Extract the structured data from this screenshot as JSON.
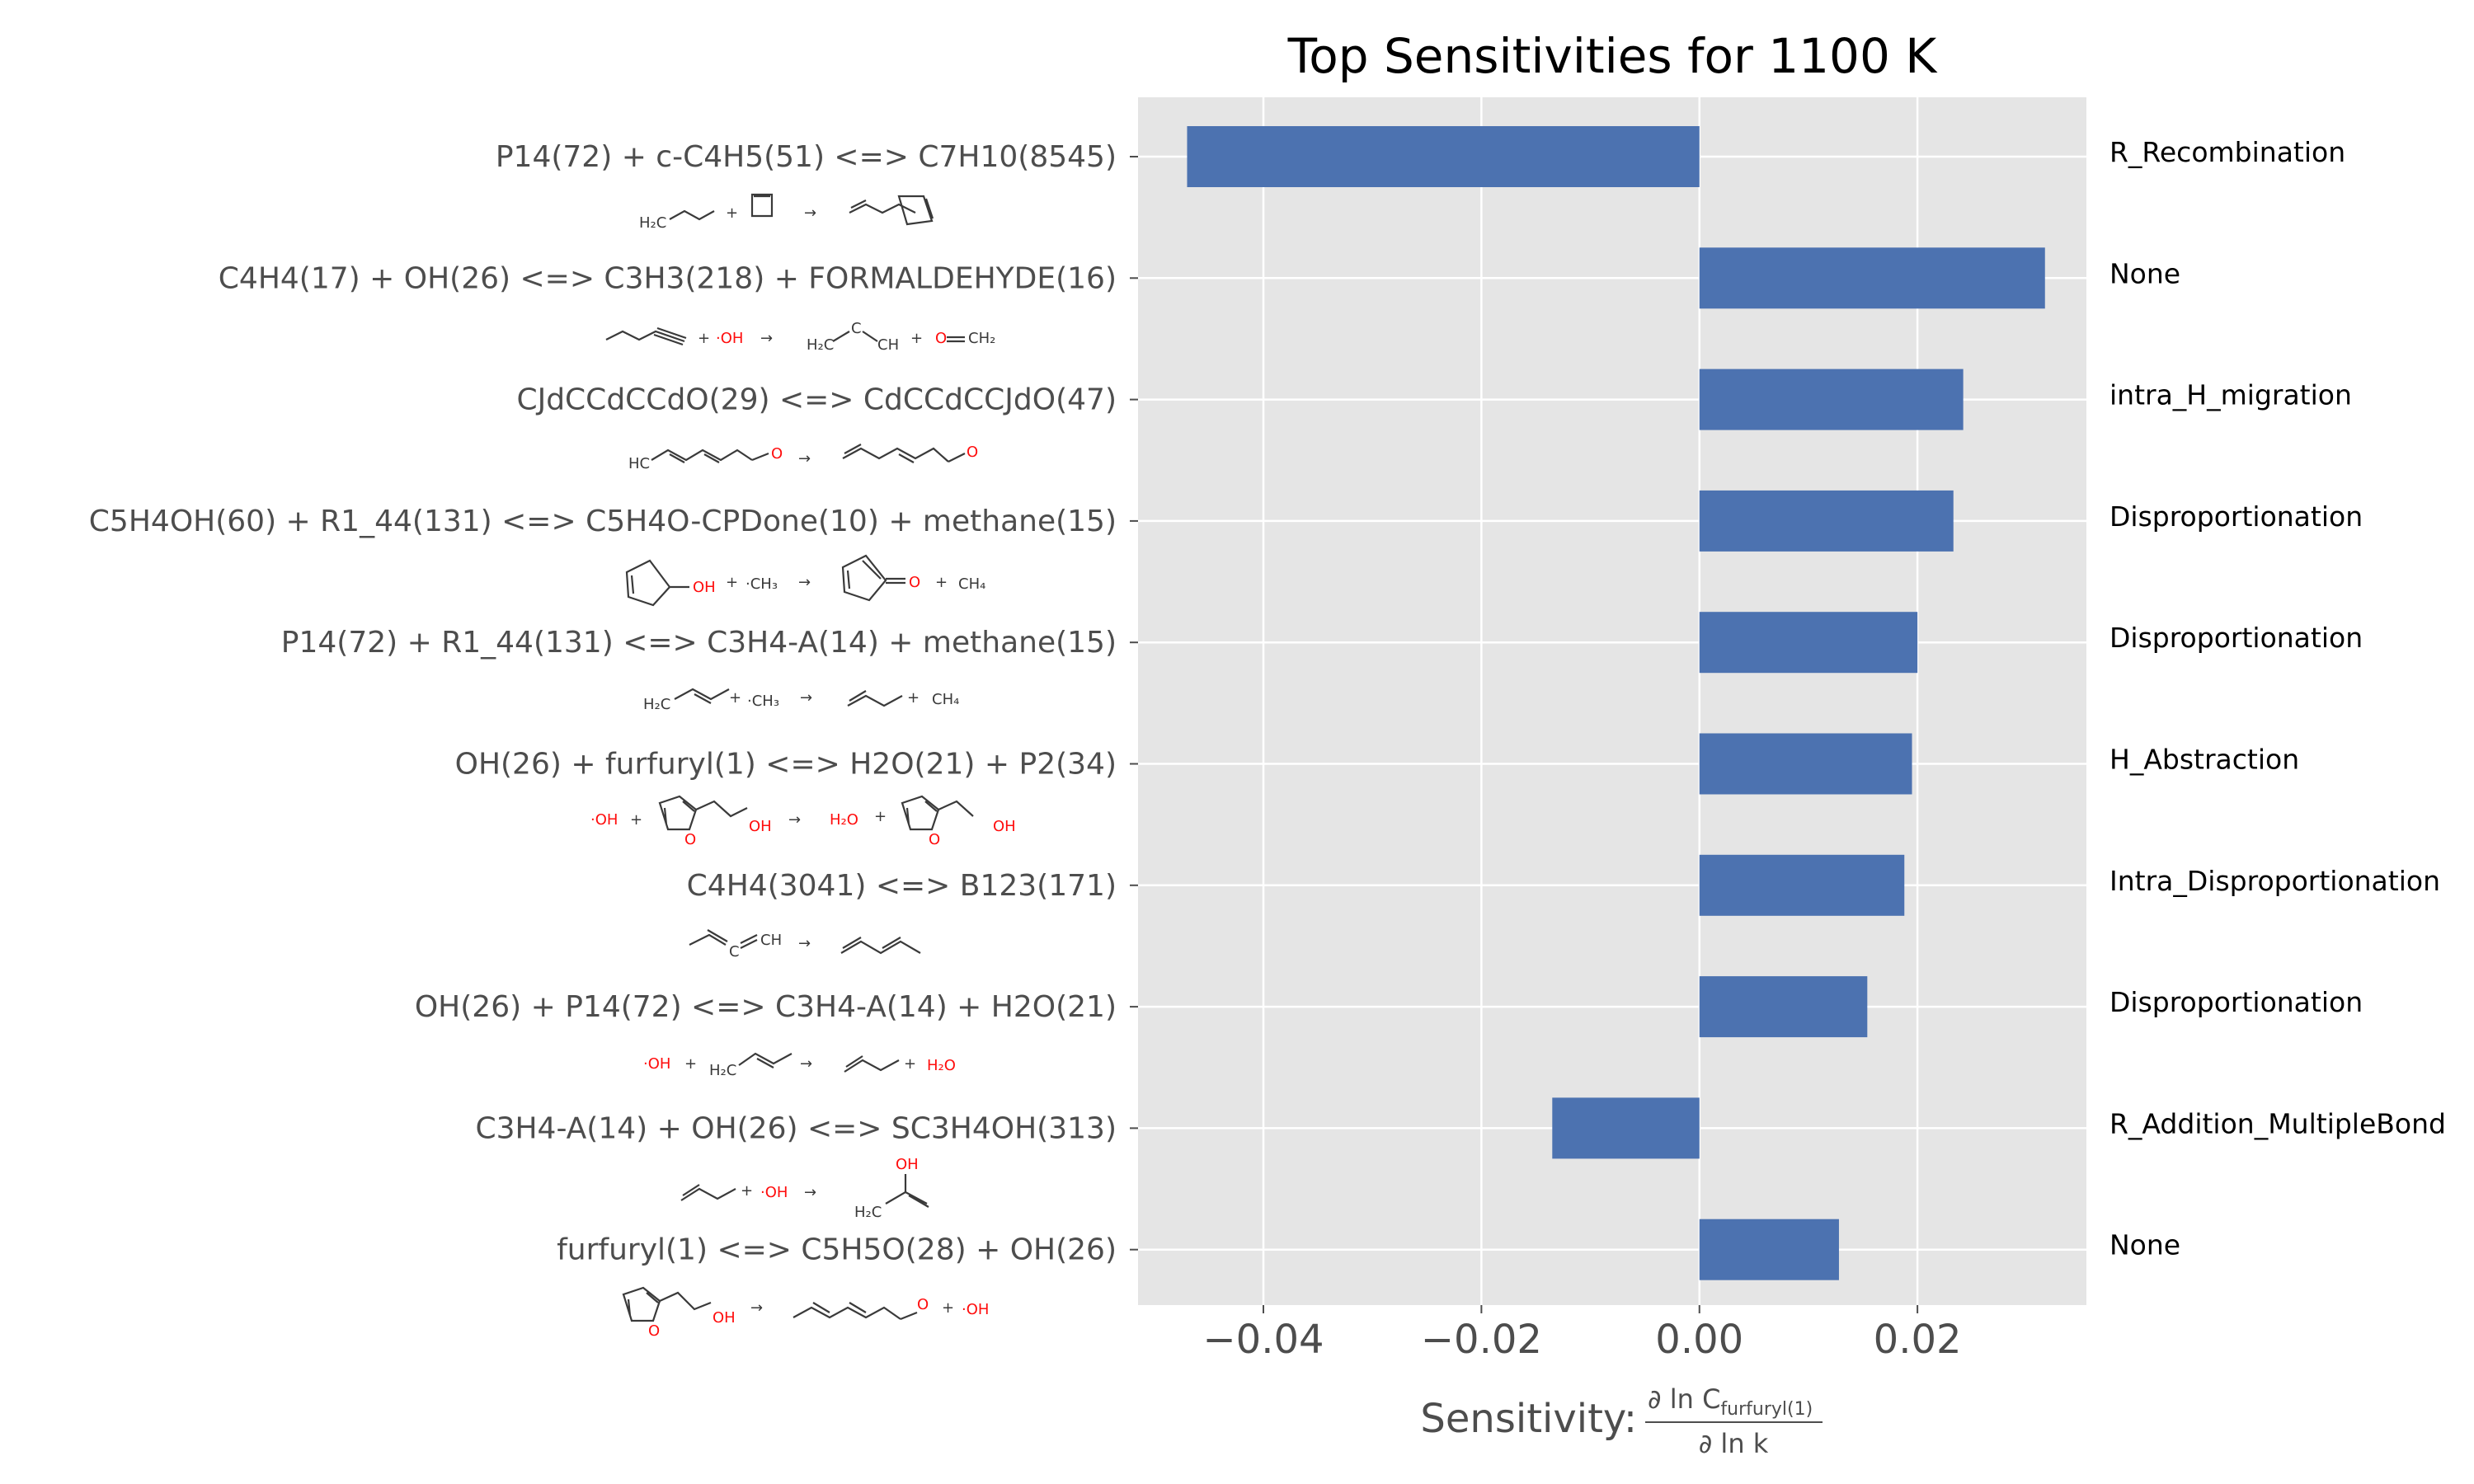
{
  "chart_data": {
    "type": "bar",
    "orientation": "horizontal",
    "title": "Top Sensitivities for 1100 K",
    "xlabel_prefix": "Sensitivity: ",
    "xlabel_numerator": "∂ ln C",
    "xlabel_numerator_sub": "furfuryl(1)",
    "xlabel_denominator": "∂ ln k",
    "xlim": [
      -0.0515,
      0.0355
    ],
    "xticks": [
      -0.04,
      -0.02,
      0.0,
      0.02
    ],
    "xtick_labels": [
      "−0.04",
      "−0.02",
      "0.00",
      "0.02"
    ],
    "grid": true,
    "bar_color": "#4c72b0",
    "background_color": "#e5e5e5",
    "categories": [
      "P14(72) + c-C4H5(51) <=> C7H10(8545)",
      "C4H4(17) + OH(26) <=> C3H3(218) + FORMALDEHYDE(16)",
      "CJdCCdCCdO(29) <=> CdCCdCCJdO(47)",
      "C5H4OH(60) + R1_44(131) <=> C5H4O-CPDone(10) + methane(15)",
      "P14(72) + R1_44(131) <=> C3H4-A(14) + methane(15)",
      "OH(26) + furfuryl(1) <=> H2O(21) + P2(34)",
      "C4H4(3041) <=> B123(171)",
      "OH(26) + P14(72) <=> C3H4-A(14) + H2O(21)",
      "C3H4-A(14) + OH(26) <=> SC3H4OH(313)",
      "furfuryl(1) <=> C5H5O(28) + OH(26)"
    ],
    "values": [
      -0.047,
      0.0317,
      0.0242,
      0.0233,
      0.02,
      0.0195,
      0.0188,
      0.0154,
      -0.0135,
      0.0128
    ],
    "families": [
      "R_Recombination",
      "None",
      "intra_H_migration",
      "Disproportionation",
      "Disproportionation",
      "H_Abstraction",
      "Intra_Disproportionation",
      "Disproportionation",
      "R_Addition_MultipleBond",
      "None"
    ]
  },
  "structure_labels": {
    "r0": {
      "a": "H₂C",
      "b": "+",
      "c": "→"
    },
    "r1": {
      "a": "+",
      "b": "·OH",
      "c": "→",
      "d": "H₂C",
      "e": "C",
      "f": "CH",
      "g": "+",
      "h": "O",
      "i": "CH₂"
    },
    "r2": {
      "a": "HC",
      "b": "O",
      "c": "→",
      "d": "O"
    },
    "r3": {
      "a": "OH",
      "b": "+",
      "c": "·CH₃",
      "d": "→",
      "e": "O",
      "f": "+",
      "g": "CH₄"
    },
    "r4": {
      "a": "H₂C",
      "b": "+",
      "c": "·CH₃",
      "d": "→",
      "e": "+",
      "f": "CH₄"
    },
    "r5": {
      "a": "·OH",
      "b": "+",
      "c": "O",
      "d": "OH",
      "e": "→",
      "f": "H₂O",
      "g": "+",
      "h": "O",
      "i": "OH"
    },
    "r6": {
      "a": "C",
      "b": "CH",
      "c": "→"
    },
    "r7": {
      "a": "·OH",
      "b": "+",
      "c": "H₂C",
      "d": "→",
      "e": "+",
      "f": "H₂O"
    },
    "r8": {
      "a": "+",
      "b": "·OH",
      "c": "→",
      "d": "OH",
      "e": "H₂C"
    },
    "r9": {
      "a": "O",
      "b": "OH",
      "c": "→",
      "d": "O",
      "e": "+",
      "f": "·OH"
    }
  }
}
